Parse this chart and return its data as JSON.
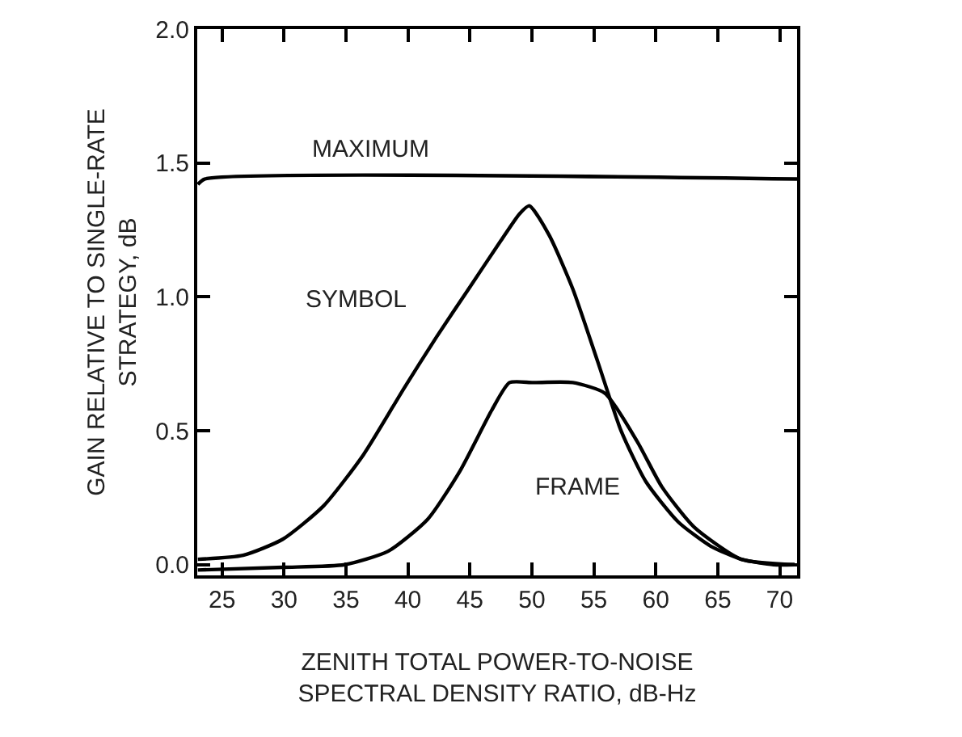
{
  "chart_data": {
    "type": "line",
    "xlabel": "ZENITH TOTAL POWER-TO-NOISE\nSPECTRAL DENSITY RATIO, dB-Hz",
    "ylabel": "GAIN RELATIVE TO SINGLE-RATE\nSTRATEGY, dB",
    "xlim": [
      23,
      71.4
    ],
    "xticks": [
      25,
      30,
      35,
      40,
      45,
      50,
      55,
      60,
      65,
      70
    ],
    "ylim": [
      -0.04,
      2.0
    ],
    "yticks": [
      {
        "value": 0,
        "label": "0.0"
      },
      {
        "value": 0.5,
        "label": "0.5"
      },
      {
        "value": 1,
        "label": "1.0"
      },
      {
        "value": 1.5,
        "label": "1.5"
      },
      {
        "value": 2,
        "label": "2.0"
      }
    ],
    "marker": "none",
    "line_style": "solid",
    "series": [
      {
        "color": "#000000",
        "x": [
          23.05,
          23.6,
          71.4
        ],
        "values": [
          1.42,
          1.44,
          1.44
        ]
      },
      {
        "color": "#000000",
        "x": [
          23.05,
          26.7,
          29.9,
          33.2,
          36.4,
          39.7,
          42.3,
          44.9,
          47.5,
          49.0,
          49.8,
          51.4,
          53.3,
          55.3,
          57.2,
          59.2,
          61.8,
          64.4,
          66.9,
          69.5,
          71.2
        ],
        "values": [
          0.02,
          0.035,
          0.095,
          0.22,
          0.41,
          0.66,
          0.85,
          1.03,
          1.21,
          1.31,
          1.34,
          1.23,
          1.03,
          0.76,
          0.5,
          0.31,
          0.16,
          0.07,
          0.02,
          0.0,
          0.0
        ]
      },
      {
        "color": "#000000",
        "x": [
          23.05,
          29.9,
          34.9,
          38.4,
          41.6,
          44.2,
          46.8,
          48.2,
          50.1,
          53.3,
          55.9,
          58.5,
          60.5,
          63.1,
          66.9,
          71.2
        ],
        "values": [
          -0.02,
          -0.01,
          0.0,
          0.05,
          0.17,
          0.35,
          0.58,
          0.68,
          0.68,
          0.68,
          0.64,
          0.46,
          0.29,
          0.14,
          0.02,
          0.0
        ]
      }
    ],
    "annotations": [
      "MAXIMUM",
      "SYMBOL",
      "FRAME"
    ]
  }
}
